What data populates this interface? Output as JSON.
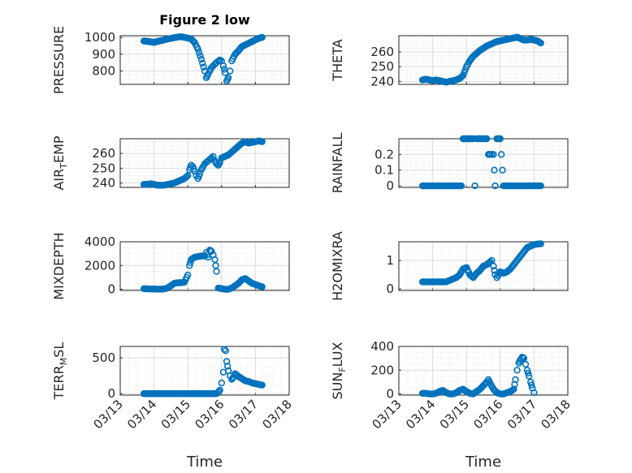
{
  "figure": {
    "title": "Figure 2 low",
    "marker_color": "#0072BD"
  },
  "chart_data": [
    {
      "type": "scatter",
      "ylabel": "PRESSURE",
      "title": "Figure 2 low",
      "xlim": [
        0,
        5
      ],
      "ylim": [
        720,
        1010
      ],
      "yticks": [
        "800",
        "900",
        "1000"
      ],
      "xticks": [
        "03/13",
        "03/14",
        "03/15",
        "03/16",
        "03/17",
        "03/18"
      ],
      "grid": true,
      "points": [
        [
          0.7,
          978
        ],
        [
          0.85,
          975
        ],
        [
          1.0,
          970
        ],
        [
          1.1,
          975
        ],
        [
          1.2,
          980
        ],
        [
          1.3,
          985
        ],
        [
          1.4,
          990
        ],
        [
          1.5,
          994
        ],
        [
          1.6,
          998
        ],
        [
          1.7,
          1002
        ],
        [
          1.8,
          1004
        ],
        [
          1.9,
          1000
        ],
        [
          2.0,
          996
        ],
        [
          2.1,
          990
        ],
        [
          2.2,
          970
        ],
        [
          2.3,
          930
        ],
        [
          2.4,
          870
        ],
        [
          2.5,
          800
        ],
        [
          2.55,
          760
        ],
        [
          2.6,
          780
        ],
        [
          2.65,
          800
        ],
        [
          2.7,
          820
        ],
        [
          2.75,
          830
        ],
        [
          2.8,
          840
        ],
        [
          2.85,
          850
        ],
        [
          2.9,
          858
        ],
        [
          2.95,
          865
        ],
        [
          3.0,
          860
        ],
        [
          3.05,
          830
        ],
        [
          3.1,
          790
        ],
        [
          3.15,
          740
        ],
        [
          3.2,
          760
        ],
        [
          3.25,
          800
        ],
        [
          3.3,
          860
        ],
        [
          3.4,
          900
        ],
        [
          3.5,
          920
        ],
        [
          3.6,
          945
        ],
        [
          3.7,
          955
        ],
        [
          3.8,
          965
        ],
        [
          3.9,
          975
        ],
        [
          4.0,
          985
        ],
        [
          4.1,
          995
        ],
        [
          4.2,
          1000
        ]
      ]
    },
    {
      "type": "scatter",
      "ylabel": "THETA",
      "xlim": [
        0,
        5
      ],
      "ylim": [
        238,
        271
      ],
      "yticks": [
        "240",
        "250",
        "260"
      ],
      "xticks": [
        "03/13",
        "03/14",
        "03/15",
        "03/16",
        "03/17",
        "03/18"
      ],
      "grid": true,
      "points": [
        [
          0.7,
          241
        ],
        [
          0.8,
          241.5
        ],
        [
          0.9,
          241
        ],
        [
          1.0,
          240.5
        ],
        [
          1.1,
          241
        ],
        [
          1.2,
          240.5
        ],
        [
          1.3,
          240
        ],
        [
          1.4,
          239.5
        ],
        [
          1.5,
          240
        ],
        [
          1.6,
          240.5
        ],
        [
          1.7,
          241
        ],
        [
          1.8,
          242
        ],
        [
          1.9,
          244
        ],
        [
          2.0,
          250
        ],
        [
          2.1,
          254
        ],
        [
          2.2,
          257
        ],
        [
          2.3,
          259
        ],
        [
          2.4,
          261
        ],
        [
          2.5,
          262.5
        ],
        [
          2.6,
          264
        ],
        [
          2.7,
          265
        ],
        [
          2.8,
          266
        ],
        [
          2.9,
          267
        ],
        [
          3.0,
          267.5
        ],
        [
          3.1,
          268
        ],
        [
          3.2,
          268.5
        ],
        [
          3.3,
          269
        ],
        [
          3.4,
          269.5
        ],
        [
          3.5,
          270
        ],
        [
          3.6,
          269
        ],
        [
          3.7,
          268
        ],
        [
          3.8,
          268
        ],
        [
          3.9,
          268.5
        ],
        [
          4.0,
          268
        ],
        [
          4.1,
          267.5
        ],
        [
          4.2,
          266
        ]
      ]
    },
    {
      "type": "scatter",
      "ylabel": "AIR_TEMP",
      "xlim": [
        0,
        5
      ],
      "ylim": [
        237,
        270
      ],
      "yticks": [
        "240",
        "250",
        "260"
      ],
      "xticks": [
        "03/13",
        "03/14",
        "03/15",
        "03/16",
        "03/17",
        "03/18"
      ],
      "grid": true,
      "points": [
        [
          0.7,
          239
        ],
        [
          0.8,
          239
        ],
        [
          0.9,
          239.5
        ],
        [
          1.0,
          239
        ],
        [
          1.1,
          238.5
        ],
        [
          1.2,
          238.5
        ],
        [
          1.3,
          238.5
        ],
        [
          1.4,
          239
        ],
        [
          1.5,
          239.5
        ],
        [
          1.6,
          240
        ],
        [
          1.7,
          241
        ],
        [
          1.8,
          242
        ],
        [
          1.9,
          243
        ],
        [
          2.0,
          245
        ],
        [
          2.05,
          249
        ],
        [
          2.1,
          252
        ],
        [
          2.15,
          251
        ],
        [
          2.2,
          248
        ],
        [
          2.25,
          245
        ],
        [
          2.3,
          243
        ],
        [
          2.35,
          246
        ],
        [
          2.4,
          249
        ],
        [
          2.45,
          251
        ],
        [
          2.5,
          253
        ],
        [
          2.55,
          254
        ],
        [
          2.6,
          255
        ],
        [
          2.65,
          256
        ],
        [
          2.7,
          257
        ],
        [
          2.75,
          258
        ],
        [
          2.8,
          255
        ],
        [
          2.85,
          253
        ],
        [
          2.9,
          252
        ],
        [
          2.95,
          254
        ],
        [
          3.0,
          257
        ],
        [
          3.1,
          258
        ],
        [
          3.2,
          259
        ],
        [
          3.3,
          261
        ],
        [
          3.4,
          263
        ],
        [
          3.5,
          265
        ],
        [
          3.6,
          267
        ],
        [
          3.7,
          268
        ],
        [
          3.8,
          267
        ],
        [
          3.9,
          267.5
        ],
        [
          4.0,
          268
        ],
        [
          4.1,
          268.5
        ],
        [
          4.2,
          268
        ]
      ]
    },
    {
      "type": "scatter",
      "ylabel": "RAINFALL",
      "xlim": [
        0,
        5
      ],
      "ylim": [
        -0.01,
        0.3
      ],
      "yticks": [
        "0",
        "0.1",
        "0.2"
      ],
      "xticks": [
        "03/13",
        "03/14",
        "03/15",
        "03/16",
        "03/17",
        "03/18"
      ],
      "grid": true,
      "points": [
        [
          0.7,
          0
        ],
        [
          0.9,
          0
        ],
        [
          1.1,
          0
        ],
        [
          1.3,
          0
        ],
        [
          1.5,
          0
        ],
        [
          1.7,
          0
        ],
        [
          1.85,
          0
        ],
        [
          1.9,
          0.3
        ],
        [
          2.0,
          0.3
        ],
        [
          2.1,
          0.3
        ],
        [
          2.2,
          0.3
        ],
        [
          2.25,
          0
        ],
        [
          2.3,
          0.3
        ],
        [
          2.4,
          0.3
        ],
        [
          2.5,
          0.3
        ],
        [
          2.6,
          0.3
        ],
        [
          2.65,
          0.2
        ],
        [
          2.7,
          0.2
        ],
        [
          2.75,
          0.2
        ],
        [
          2.8,
          0.2
        ],
        [
          2.85,
          0
        ],
        [
          2.9,
          0.3
        ],
        [
          3.0,
          0.3
        ],
        [
          3.1,
          0
        ],
        [
          3.3,
          0
        ],
        [
          3.5,
          0
        ],
        [
          3.7,
          0
        ],
        [
          3.9,
          0
        ],
        [
          4.1,
          0
        ],
        [
          4.2,
          0
        ]
      ]
    },
    {
      "type": "scatter",
      "ylabel": "MIXDEPTH",
      "xlim": [
        0,
        5
      ],
      "ylim": [
        -100,
        4000
      ],
      "yticks": [
        "0",
        "2000",
        "4000"
      ],
      "xticks": [
        "03/13",
        "03/14",
        "03/15",
        "03/16",
        "03/17",
        "03/18"
      ],
      "grid": true,
      "points": [
        [
          0.7,
          50
        ],
        [
          0.8,
          30
        ],
        [
          0.9,
          30
        ],
        [
          1.0,
          20
        ],
        [
          1.1,
          10
        ],
        [
          1.2,
          10
        ],
        [
          1.3,
          30
        ],
        [
          1.4,
          100
        ],
        [
          1.5,
          300
        ],
        [
          1.6,
          500
        ],
        [
          1.7,
          550
        ],
        [
          1.8,
          550
        ],
        [
          1.9,
          600
        ],
        [
          2.0,
          1200
        ],
        [
          2.05,
          2000
        ],
        [
          2.1,
          2500
        ],
        [
          2.2,
          2700
        ],
        [
          2.3,
          2750
        ],
        [
          2.4,
          2800
        ],
        [
          2.5,
          2800
        ],
        [
          2.55,
          3100
        ],
        [
          2.6,
          2700
        ],
        [
          2.65,
          3300
        ],
        [
          2.7,
          3200
        ],
        [
          2.75,
          2900
        ],
        [
          2.8,
          2500
        ],
        [
          2.85,
          1500
        ],
        [
          2.9,
          100
        ],
        [
          3.0,
          50
        ],
        [
          3.1,
          0
        ],
        [
          3.2,
          0
        ],
        [
          3.3,
          100
        ],
        [
          3.4,
          300
        ],
        [
          3.5,
          500
        ],
        [
          3.6,
          800
        ],
        [
          3.7,
          900
        ],
        [
          3.8,
          700
        ],
        [
          3.9,
          500
        ],
        [
          4.0,
          400
        ],
        [
          4.1,
          300
        ],
        [
          4.2,
          200
        ]
      ]
    },
    {
      "type": "scatter",
      "ylabel": "H2OMIXRA",
      "xlim": [
        0,
        5
      ],
      "ylim": [
        -0.05,
        1.65
      ],
      "yticks": [
        "0",
        "1"
      ],
      "xticks": [
        "03/13",
        "03/14",
        "03/15",
        "03/16",
        "03/17",
        "03/18"
      ],
      "grid": true,
      "points": [
        [
          0.7,
          0.25
        ],
        [
          0.8,
          0.25
        ],
        [
          0.9,
          0.25
        ],
        [
          1.0,
          0.25
        ],
        [
          1.1,
          0.25
        ],
        [
          1.2,
          0.25
        ],
        [
          1.3,
          0.25
        ],
        [
          1.4,
          0.25
        ],
        [
          1.5,
          0.3
        ],
        [
          1.6,
          0.35
        ],
        [
          1.7,
          0.4
        ],
        [
          1.8,
          0.5
        ],
        [
          1.9,
          0.7
        ],
        [
          2.0,
          0.75
        ],
        [
          2.1,
          0.5
        ],
        [
          2.2,
          0.4
        ],
        [
          2.3,
          0.55
        ],
        [
          2.4,
          0.65
        ],
        [
          2.5,
          0.8
        ],
        [
          2.6,
          0.85
        ],
        [
          2.7,
          0.95
        ],
        [
          2.75,
          1.0
        ],
        [
          2.8,
          0.8
        ],
        [
          2.85,
          0.5
        ],
        [
          2.9,
          0.4
        ],
        [
          3.0,
          0.6
        ],
        [
          3.1,
          0.55
        ],
        [
          3.2,
          0.6
        ],
        [
          3.3,
          0.7
        ],
        [
          3.4,
          0.85
        ],
        [
          3.5,
          1.0
        ],
        [
          3.6,
          1.15
        ],
        [
          3.7,
          1.3
        ],
        [
          3.8,
          1.45
        ],
        [
          3.9,
          1.5
        ],
        [
          4.0,
          1.55
        ],
        [
          4.1,
          1.57
        ],
        [
          4.2,
          1.58
        ]
      ]
    },
    {
      "type": "scatter",
      "ylabel": "TERR_MSL",
      "xlim": [
        0,
        5
      ],
      "ylim": [
        -20,
        660
      ],
      "yticks": [
        "0",
        "500"
      ],
      "xticks": [
        "03/13",
        "03/14",
        "03/15",
        "03/16",
        "03/17",
        "03/18"
      ],
      "grid": true,
      "points": [
        [
          0.7,
          0
        ],
        [
          0.9,
          0
        ],
        [
          1.1,
          0
        ],
        [
          1.3,
          0
        ],
        [
          1.5,
          0
        ],
        [
          1.7,
          0
        ],
        [
          1.9,
          0
        ],
        [
          2.1,
          0
        ],
        [
          2.3,
          0
        ],
        [
          2.5,
          0
        ],
        [
          2.7,
          0
        ],
        [
          2.85,
          0
        ],
        [
          2.95,
          50
        ],
        [
          3.0,
          150
        ],
        [
          3.05,
          300
        ],
        [
          3.08,
          620
        ],
        [
          3.12,
          600
        ],
        [
          3.15,
          450
        ],
        [
          3.2,
          320
        ],
        [
          3.25,
          250
        ],
        [
          3.3,
          200
        ],
        [
          3.35,
          230
        ],
        [
          3.4,
          280
        ],
        [
          3.5,
          240
        ],
        [
          3.6,
          210
        ],
        [
          3.7,
          180
        ],
        [
          3.8,
          170
        ],
        [
          3.9,
          150
        ],
        [
          4.0,
          140
        ],
        [
          4.1,
          130
        ],
        [
          4.2,
          120
        ]
      ]
    },
    {
      "type": "scatter",
      "ylabel": "SUN_FLUX",
      "xlim": [
        0,
        5
      ],
      "ylim": [
        -10,
        400
      ],
      "yticks": [
        "0",
        "200",
        "400"
      ],
      "xticks": [
        "03/13",
        "03/14",
        "03/15",
        "03/16",
        "03/17",
        "03/18"
      ],
      "grid": true,
      "points": [
        [
          0.7,
          5
        ],
        [
          0.8,
          5
        ],
        [
          0.9,
          0
        ],
        [
          1.0,
          0
        ],
        [
          1.1,
          5
        ],
        [
          1.2,
          20
        ],
        [
          1.3,
          30
        ],
        [
          1.4,
          10
        ],
        [
          1.5,
          0
        ],
        [
          1.6,
          0
        ],
        [
          1.7,
          10
        ],
        [
          1.8,
          30
        ],
        [
          1.9,
          40
        ],
        [
          2.0,
          20
        ],
        [
          2.1,
          5
        ],
        [
          2.2,
          0
        ],
        [
          2.3,
          20
        ],
        [
          2.4,
          40
        ],
        [
          2.5,
          70
        ],
        [
          2.6,
          100
        ],
        [
          2.65,
          120
        ],
        [
          2.7,
          90
        ],
        [
          2.8,
          40
        ],
        [
          2.9,
          10
        ],
        [
          3.0,
          0
        ],
        [
          3.1,
          0
        ],
        [
          3.2,
          10
        ],
        [
          3.3,
          20
        ],
        [
          3.4,
          40
        ],
        [
          3.45,
          120
        ],
        [
          3.5,
          200
        ],
        [
          3.55,
          260
        ],
        [
          3.6,
          290
        ],
        [
          3.65,
          310
        ],
        [
          3.7,
          300
        ],
        [
          3.75,
          250
        ],
        [
          3.8,
          200
        ],
        [
          3.85,
          150
        ],
        [
          3.9,
          100
        ],
        [
          3.95,
          50
        ],
        [
          4.0,
          10
        ]
      ]
    }
  ],
  "xlabel_left": "Time",
  "xlabel_right": "Time"
}
